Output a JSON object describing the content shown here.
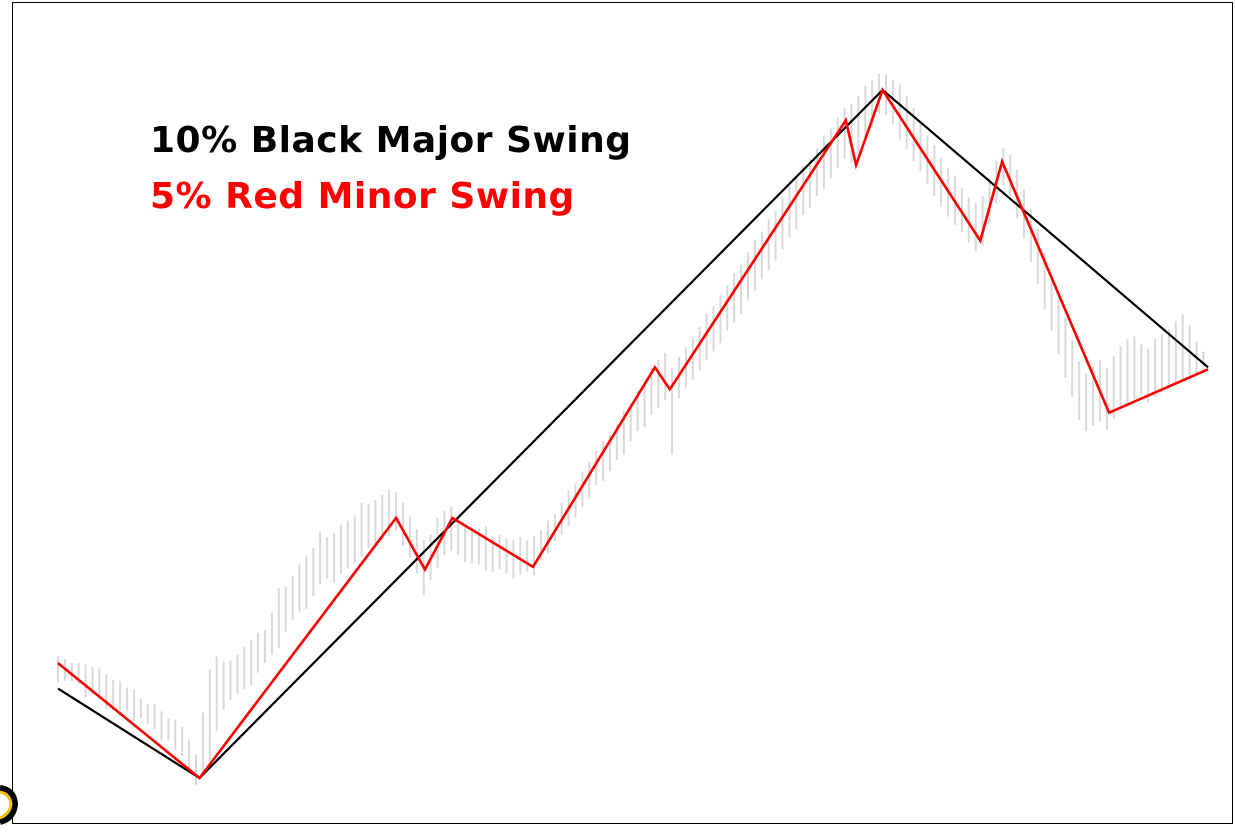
{
  "chart_data": {
    "type": "line",
    "title": "",
    "xlabel": "",
    "ylabel": "",
    "grid": false,
    "axes_visible": false,
    "xlim": [
      0,
      100
    ],
    "ylim": [
      0,
      100
    ],
    "legend_placement": "top-left",
    "colors": {
      "background": "#ffffff",
      "frame": "#000000",
      "price_bars": "#d9d9d9",
      "major": "#000000",
      "minor": "#ff0000",
      "corner_mark": "#f2c200"
    },
    "series": [
      {
        "name": "10% Black Major Swing",
        "color": "#000000",
        "points": [
          [
            0,
            13
          ],
          [
            12.3,
            0
          ],
          [
            71.7,
            100
          ],
          [
            100,
            59.7
          ]
        ]
      },
      {
        "name": "5% Red Minor Swing",
        "color": "#ff0000",
        "points": [
          [
            0,
            16.7
          ],
          [
            12.3,
            0
          ],
          [
            29.4,
            37.8
          ],
          [
            31.9,
            30.3
          ],
          [
            34.3,
            37.8
          ],
          [
            41.3,
            30.7
          ],
          [
            51.9,
            59.7
          ],
          [
            53.2,
            56.5
          ],
          [
            68.5,
            95.6
          ],
          [
            69.4,
            89.1
          ],
          [
            71.7,
            100
          ],
          [
            80.2,
            78.1
          ],
          [
            82.1,
            89.6
          ],
          [
            91.4,
            53.1
          ],
          [
            100,
            59.4
          ]
        ]
      }
    ],
    "price_bars": [
      [
        0.0,
        13.9,
        17.7
      ],
      [
        0.6,
        14.1,
        17.3
      ],
      [
        1.2,
        14.1,
        16.7
      ],
      [
        1.8,
        13.7,
        16.7
      ],
      [
        2.4,
        11.7,
        16.5
      ],
      [
        3.0,
        12.1,
        16.1
      ],
      [
        3.6,
        12.1,
        15.9
      ],
      [
        4.2,
        10.1,
        15.1
      ],
      [
        4.8,
        9.9,
        14.3
      ],
      [
        5.4,
        9.9,
        14.1
      ],
      [
        6.0,
        9.7,
        13.1
      ],
      [
        6.6,
        8.3,
        12.9
      ],
      [
        7.2,
        8.7,
        11.5
      ],
      [
        7.8,
        7.9,
        10.7
      ],
      [
        8.4,
        7.1,
        10.7
      ],
      [
        9.0,
        5.4,
        9.7
      ],
      [
        9.6,
        5.6,
        8.7
      ],
      [
        10.2,
        4.0,
        8.5
      ],
      [
        10.8,
        3.2,
        7.4
      ],
      [
        11.4,
        1.4,
        5.6
      ],
      [
        12.0,
        -1.0,
        3.4
      ],
      [
        12.6,
        0.2,
        9.5
      ],
      [
        13.2,
        2.4,
        15.7
      ],
      [
        13.8,
        6.8,
        17.7
      ],
      [
        14.4,
        9.9,
        16.9
      ],
      [
        15.0,
        11.3,
        17.1
      ],
      [
        15.6,
        12.3,
        17.9
      ],
      [
        16.2,
        12.9,
        19.1
      ],
      [
        16.8,
        13.5,
        20.1
      ],
      [
        17.4,
        15.3,
        21.1
      ],
      [
        18.0,
        16.7,
        21.5
      ],
      [
        18.6,
        17.9,
        24.0
      ],
      [
        19.2,
        18.9,
        27.6
      ],
      [
        19.8,
        21.3,
        27.8
      ],
      [
        20.4,
        23.0,
        29.4
      ],
      [
        21.0,
        24.2,
        31.0
      ],
      [
        21.6,
        24.6,
        32.2
      ],
      [
        22.2,
        26.4,
        33.4
      ],
      [
        22.8,
        28.2,
        35.8
      ],
      [
        23.4,
        29.0,
        35.0
      ],
      [
        24.0,
        28.4,
        35.6
      ],
      [
        24.6,
        29.6,
        36.8
      ],
      [
        25.2,
        30.6,
        37.4
      ],
      [
        25.8,
        31.2,
        38.2
      ],
      [
        26.4,
        32.2,
        40.0
      ],
      [
        27.0,
        33.4,
        39.8
      ],
      [
        27.6,
        33.8,
        40.4
      ],
      [
        28.2,
        34.6,
        41.2
      ],
      [
        28.8,
        35.2,
        42.0
      ],
      [
        29.4,
        36.0,
        41.6
      ],
      [
        30.0,
        33.8,
        40.0
      ],
      [
        30.6,
        32.0,
        38.0
      ],
      [
        31.2,
        29.8,
        36.2
      ],
      [
        31.8,
        26.6,
        34.6
      ],
      [
        32.4,
        28.8,
        35.4
      ],
      [
        33.0,
        30.6,
        37.8
      ],
      [
        33.6,
        32.4,
        38.8
      ],
      [
        34.2,
        33.0,
        39.4
      ],
      [
        34.8,
        32.4,
        38.0
      ],
      [
        35.4,
        31.4,
        36.8
      ],
      [
        36.0,
        31.2,
        36.4
      ],
      [
        36.6,
        31.0,
        36.2
      ],
      [
        37.2,
        30.2,
        36.6
      ],
      [
        37.8,
        30.0,
        35.2
      ],
      [
        38.4,
        30.4,
        35.4
      ],
      [
        39.0,
        29.8,
        34.8
      ],
      [
        39.6,
        29.0,
        34.6
      ],
      [
        40.2,
        29.6,
        35.0
      ],
      [
        40.8,
        30.0,
        34.6
      ],
      [
        41.4,
        29.4,
        35.2
      ],
      [
        42.0,
        31.6,
        36.0
      ],
      [
        42.6,
        32.6,
        37.4
      ],
      [
        43.2,
        34.4,
        38.4
      ],
      [
        43.8,
        35.4,
        40.0
      ],
      [
        44.4,
        36.6,
        41.8
      ],
      [
        45.0,
        37.8,
        42.8
      ],
      [
        45.6,
        39.4,
        44.4
      ],
      [
        46.2,
        40.6,
        46.0
      ],
      [
        46.8,
        42.6,
        47.6
      ],
      [
        47.4,
        43.2,
        49.0
      ],
      [
        48.0,
        44.6,
        49.8
      ],
      [
        48.6,
        46.2,
        51.4
      ],
      [
        49.2,
        47.0,
        53.4
      ],
      [
        49.8,
        49.0,
        54.4
      ],
      [
        50.4,
        50.4,
        56.2
      ],
      [
        51.0,
        51.0,
        57.4
      ],
      [
        51.6,
        52.8,
        59.6
      ],
      [
        52.2,
        53.8,
        60.8
      ],
      [
        52.8,
        55.0,
        61.8
      ],
      [
        53.4,
        47.0,
        59.6
      ],
      [
        54.0,
        55.2,
        61.2
      ],
      [
        54.6,
        56.6,
        62.6
      ],
      [
        55.2,
        57.8,
        64.0
      ],
      [
        55.8,
        59.2,
        65.6
      ],
      [
        56.4,
        60.8,
        67.6
      ],
      [
        57.0,
        62.0,
        68.6
      ],
      [
        57.6,
        63.2,
        70.2
      ],
      [
        58.2,
        65.0,
        71.6
      ],
      [
        58.8,
        66.2,
        73.4
      ],
      [
        59.4,
        67.4,
        74.6
      ],
      [
        60.0,
        69.4,
        76.4
      ],
      [
        60.6,
        70.8,
        78.2
      ],
      [
        61.2,
        72.6,
        79.4
      ],
      [
        61.8,
        73.8,
        81.2
      ],
      [
        62.4,
        75.2,
        82.4
      ],
      [
        63.0,
        76.8,
        84.4
      ],
      [
        63.6,
        78.6,
        86.0
      ],
      [
        64.2,
        79.8,
        87.6
      ],
      [
        64.8,
        81.8,
        89.0
      ],
      [
        65.4,
        82.8,
        90.0
      ],
      [
        66.0,
        84.6,
        91.6
      ],
      [
        66.6,
        85.6,
        93.4
      ],
      [
        67.2,
        87.2,
        94.4
      ],
      [
        67.8,
        88.6,
        96.0
      ],
      [
        68.4,
        90.0,
        97.4
      ],
      [
        69.0,
        89.4,
        98.0
      ],
      [
        69.6,
        90.4,
        99.2
      ],
      [
        70.2,
        93.2,
        100.6
      ],
      [
        70.8,
        94.6,
        101.4
      ],
      [
        71.4,
        96.6,
        102.4
      ],
      [
        72.0,
        96.4,
        102.2
      ],
      [
        72.6,
        95.0,
        101.4
      ],
      [
        73.2,
        92.8,
        100.8
      ],
      [
        73.8,
        91.4,
        99.2
      ],
      [
        74.4,
        89.6,
        97.4
      ],
      [
        75.0,
        88.2,
        95.2
      ],
      [
        75.6,
        86.4,
        93.4
      ],
      [
        76.2,
        84.6,
        92.0
      ],
      [
        76.8,
        83.0,
        90.2
      ],
      [
        77.4,
        81.6,
        88.6
      ],
      [
        78.0,
        80.4,
        87.6
      ],
      [
        78.6,
        79.4,
        85.8
      ],
      [
        79.2,
        77.8,
        84.4
      ],
      [
        79.8,
        76.6,
        83.6
      ],
      [
        80.4,
        77.4,
        84.6
      ],
      [
        81.0,
        80.6,
        87.2
      ],
      [
        81.6,
        83.6,
        89.8
      ],
      [
        82.2,
        86.2,
        91.6
      ],
      [
        82.8,
        84.6,
        90.6
      ],
      [
        83.4,
        81.4,
        88.4
      ],
      [
        84.0,
        78.4,
        85.6
      ],
      [
        84.6,
        75.0,
        82.6
      ],
      [
        85.2,
        71.8,
        79.8
      ],
      [
        85.8,
        68.2,
        76.4
      ],
      [
        86.4,
        65.0,
        73.0
      ],
      [
        87.0,
        61.6,
        70.2
      ],
      [
        87.6,
        58.2,
        67.0
      ],
      [
        88.2,
        55.4,
        63.6
      ],
      [
        88.8,
        52.0,
        60.6
      ],
      [
        89.4,
        50.4,
        58.8
      ],
      [
        90.0,
        51.2,
        59.8
      ],
      [
        90.6,
        51.8,
        60.8
      ],
      [
        91.2,
        50.6,
        59.6
      ],
      [
        91.8,
        52.2,
        61.4
      ],
      [
        92.4,
        53.6,
        62.8
      ],
      [
        93.0,
        54.4,
        63.8
      ],
      [
        93.6,
        55.0,
        64.2
      ],
      [
        94.2,
        55.6,
        63.0
      ],
      [
        94.8,
        54.6,
        62.4
      ],
      [
        95.4,
        55.4,
        63.8
      ],
      [
        96.0,
        56.0,
        64.6
      ],
      [
        96.6,
        56.6,
        65.2
      ],
      [
        97.2,
        57.2,
        66.4
      ],
      [
        97.8,
        57.8,
        67.4
      ],
      [
        98.4,
        58.2,
        65.8
      ],
      [
        99.0,
        58.6,
        63.4
      ],
      [
        99.6,
        58.8,
        62.0
      ]
    ]
  },
  "legend": {
    "major_label": "10% Black Major Swing",
    "minor_label": "5% Red Minor Swing",
    "major_color": "#000000",
    "minor_color": "#ff0000"
  }
}
